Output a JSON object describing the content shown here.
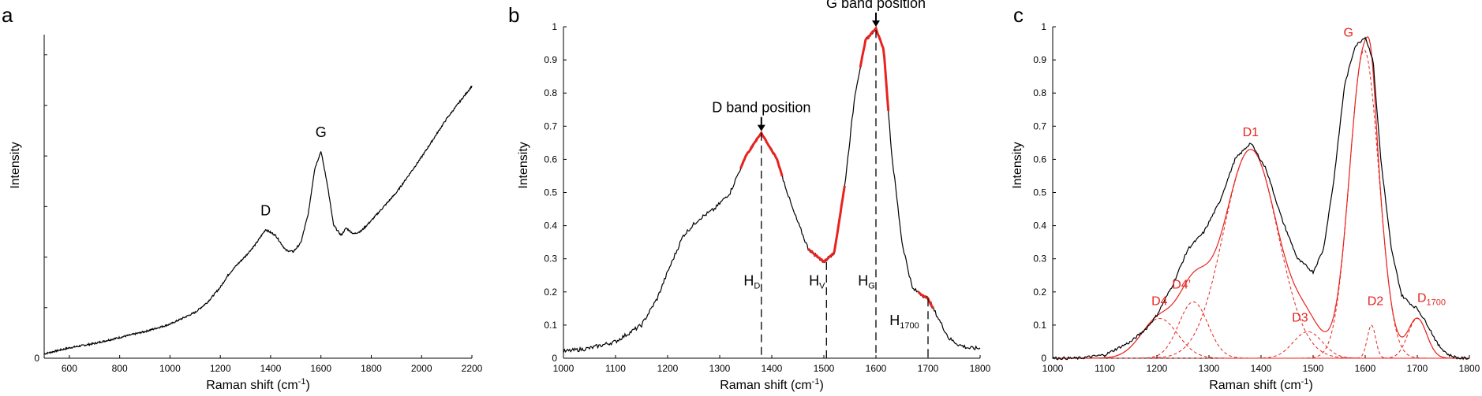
{
  "colors": {
    "spectrum": "#000000",
    "fit_highlight": "#e8231e",
    "component": "#e8231e"
  },
  "chart_data": [
    {
      "type": "line",
      "panel_label": "a",
      "xlabel": "Raman shift (cm",
      "xlabel_sup": "-1",
      "xlabel_end": ")",
      "ylabel": "Intensity",
      "xlim": [
        500,
        2200
      ],
      "x_ticks": [
        600,
        800,
        1000,
        1200,
        1400,
        1600,
        1800,
        2000,
        2200
      ],
      "y_ticks_labeled": [
        "0"
      ],
      "y_tick_count": 7,
      "annotations": [
        {
          "text": "D",
          "x": 1380
        },
        {
          "text": "G",
          "x": 1600
        }
      ],
      "series": [
        {
          "x": [
            500,
            600,
            700,
            800,
            900,
            1000,
            1100,
            1150,
            1200,
            1230,
            1260,
            1300,
            1340,
            1380,
            1420,
            1460,
            1490,
            1520,
            1550,
            1575,
            1600,
            1625,
            1650,
            1680,
            1700,
            1730,
            1760,
            1800,
            1900,
            2000,
            2100,
            2200
          ],
          "y": [
            0.03,
            0.07,
            0.1,
            0.14,
            0.18,
            0.23,
            0.31,
            0.38,
            0.48,
            0.56,
            0.62,
            0.69,
            0.77,
            0.87,
            0.83,
            0.73,
            0.72,
            0.78,
            0.98,
            1.28,
            1.4,
            1.18,
            0.9,
            0.83,
            0.88,
            0.84,
            0.86,
            0.93,
            1.12,
            1.36,
            1.62,
            1.84
          ]
        }
      ]
    },
    {
      "type": "line",
      "panel_label": "b",
      "xlabel": "Raman shift (cm",
      "xlabel_sup": "-1",
      "xlabel_end": ")",
      "ylabel": "Intensity",
      "xlim": [
        1000,
        1800
      ],
      "ylim": [
        0,
        1
      ],
      "x_ticks": [
        1000,
        1100,
        1200,
        1300,
        1400,
        1500,
        1600,
        1700,
        1800
      ],
      "y_ticks": [
        0,
        0.1,
        0.2,
        0.3,
        0.4,
        0.5,
        0.6,
        0.7,
        0.8,
        0.9,
        1
      ],
      "annotations": [
        {
          "text": "D band position",
          "x": 1380
        },
        {
          "text": "G band position",
          "x": 1600
        }
      ],
      "markers": [
        {
          "label": "H",
          "sub": "D",
          "x": 1380,
          "y": 0.68
        },
        {
          "label": "H",
          "sub": "V",
          "x": 1505,
          "y": 0.29
        },
        {
          "label": "H",
          "sub": "G",
          "x": 1600,
          "y": 0.99
        },
        {
          "label": "H",
          "sub": "1700",
          "x": 1700,
          "y": 0.18
        }
      ],
      "series": [
        {
          "x": [
            1000,
            1050,
            1100,
            1150,
            1180,
            1200,
            1230,
            1260,
            1290,
            1320,
            1350,
            1380,
            1410,
            1440,
            1470,
            1500,
            1520,
            1540,
            1560,
            1580,
            1600,
            1615,
            1630,
            1650,
            1670,
            1690,
            1700,
            1720,
            1740,
            1760,
            1780,
            1800
          ],
          "y": [
            0.02,
            0.03,
            0.05,
            0.1,
            0.18,
            0.26,
            0.37,
            0.42,
            0.45,
            0.5,
            0.61,
            0.68,
            0.6,
            0.45,
            0.33,
            0.29,
            0.32,
            0.52,
            0.8,
            0.96,
            0.995,
            0.93,
            0.62,
            0.35,
            0.21,
            0.19,
            0.18,
            0.12,
            0.06,
            0.04,
            0.03,
            0.03
          ]
        }
      ]
    },
    {
      "type": "line",
      "panel_label": "c",
      "xlabel": "Raman shift (cm",
      "xlabel_sup": "-1",
      "xlabel_end": ")",
      "ylabel": "Intensity",
      "xlim": [
        1000,
        1800
      ],
      "ylim": [
        0,
        1
      ],
      "x_ticks": [
        1000,
        1100,
        1200,
        1300,
        1400,
        1500,
        1600,
        1700,
        1800
      ],
      "y_ticks": [
        0,
        0.1,
        0.2,
        0.3,
        0.4,
        0.5,
        0.6,
        0.7,
        0.8,
        0.9,
        1
      ],
      "components": [
        {
          "label": "D4",
          "sub": "",
          "center": 1205,
          "amp": 0.12,
          "width": 35
        },
        {
          "label": "D4’",
          "sub": "",
          "center": 1270,
          "amp": 0.17,
          "width": 28
        },
        {
          "label": "D1",
          "sub": "",
          "center": 1380,
          "amp": 0.63,
          "width": 52
        },
        {
          "label": "D3",
          "sub": "",
          "center": 1490,
          "amp": 0.08,
          "width": 28
        },
        {
          "label": "G",
          "sub": "",
          "center": 1598,
          "amp": 0.93,
          "width": 28
        },
        {
          "label": "D2",
          "sub": "",
          "center": 1612,
          "amp": 0.1,
          "width": 8
        },
        {
          "label": "D",
          "sub": "1700",
          "center": 1700,
          "amp": 0.12,
          "width": 18
        }
      ],
      "series": [
        {
          "x": [
            1000,
            1050,
            1100,
            1150,
            1180,
            1200,
            1230,
            1260,
            1290,
            1320,
            1350,
            1380,
            1410,
            1440,
            1470,
            1500,
            1520,
            1540,
            1560,
            1580,
            1600,
            1615,
            1630,
            1650,
            1670,
            1690,
            1700,
            1720,
            1740,
            1760,
            1780,
            1800
          ],
          "y": [
            0.0,
            0.0,
            0.01,
            0.05,
            0.09,
            0.13,
            0.22,
            0.33,
            0.38,
            0.47,
            0.6,
            0.65,
            0.57,
            0.42,
            0.3,
            0.26,
            0.33,
            0.54,
            0.82,
            0.94,
            0.97,
            0.9,
            0.6,
            0.33,
            0.19,
            0.16,
            0.15,
            0.1,
            0.04,
            0.01,
            0.0,
            0.0
          ]
        }
      ]
    }
  ]
}
